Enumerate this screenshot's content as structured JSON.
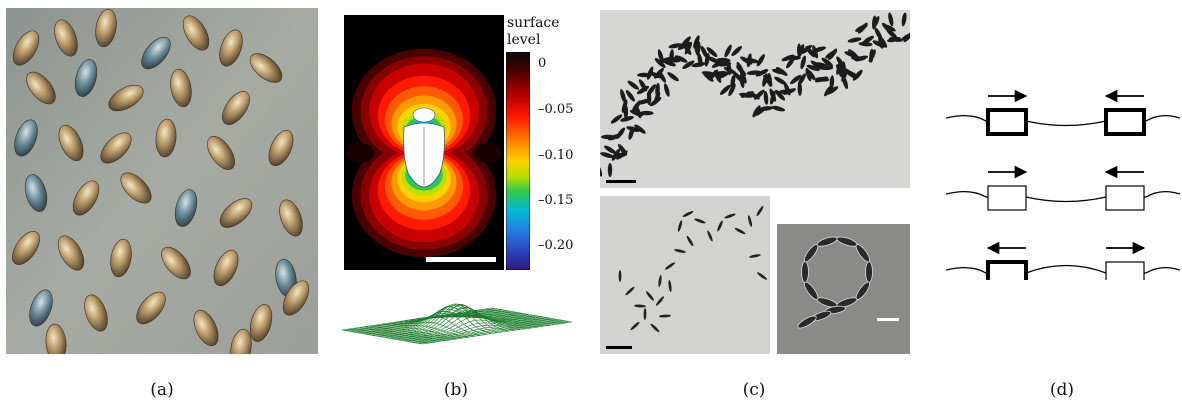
{
  "figure": {
    "captions": [
      "(a)",
      "(b)",
      "(c)",
      "(d)"
    ],
    "panel_b": {
      "colorbar": {
        "title_line1": "surface",
        "title_line2": "level",
        "ticks": [
          "0",
          "–0.05",
          "–0.10",
          "–0.15",
          "–0.20"
        ],
        "range": [
          -0.22,
          0
        ],
        "colors": [
          "#0a0a0a",
          "#4a0000",
          "#b80000",
          "#ff1a00",
          "#ff7a00",
          "#ffd000",
          "#b8e000",
          "#30c850",
          "#00b8d8",
          "#2878e0",
          "#2840b8",
          "#301880"
        ]
      }
    },
    "panel_d": {
      "rows": [
        {
          "left_arrow": "right",
          "right_arrow": "left",
          "box_style": "thick"
        },
        {
          "left_arrow": "right",
          "right_arrow": "left",
          "box_style": "thin"
        },
        {
          "left_arrow": "left",
          "right_arrow": "right",
          "box_style": "mixed"
        }
      ]
    }
  }
}
